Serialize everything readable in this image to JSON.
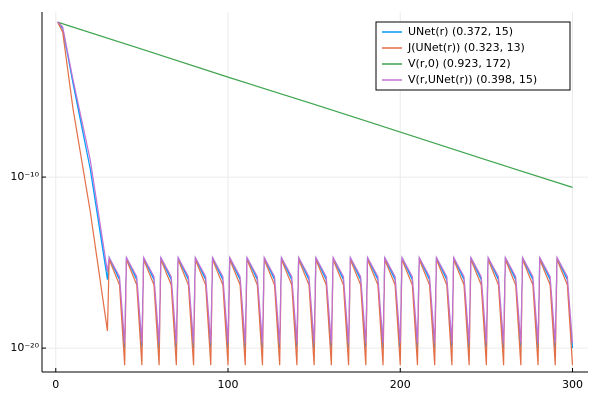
{
  "chart_data": {
    "type": "line",
    "yscale": "log",
    "grid": true,
    "legend": "topright",
    "xlim": [
      -8,
      309
    ],
    "xticks": [
      0,
      100,
      200,
      300
    ],
    "ylim": [
      4e-22,
      0.45
    ],
    "yticks": [
      {
        "value": 1e-10,
        "label": "10⁻¹⁰"
      },
      {
        "value": 1e-20,
        "label": "10⁻²⁰"
      }
    ],
    "x": [
      1,
      4,
      10,
      20,
      30,
      31,
      37,
      40,
      41,
      47,
      50,
      51,
      57,
      60,
      61,
      67,
      70,
      71,
      77,
      80,
      81,
      87,
      90,
      91,
      97,
      100,
      101,
      107,
      110,
      111,
      117,
      120,
      121,
      127,
      130,
      131,
      137,
      140,
      141,
      147,
      150,
      151,
      157,
      160,
      161,
      167,
      170,
      171,
      177,
      180,
      181,
      187,
      190,
      191,
      197,
      200,
      201,
      207,
      210,
      211,
      217,
      220,
      221,
      227,
      230,
      231,
      237,
      240,
      241,
      247,
      250,
      251,
      257,
      260,
      261,
      267,
      270,
      271,
      277,
      280,
      281,
      287,
      290,
      291,
      297,
      300
    ],
    "series": [
      {
        "name": "UNet(r) (0.372, 15)",
        "color": "#009afa",
        "values": [
          0.12,
          0.05,
          3e-05,
          3e-10,
          1e-16,
          2e-15,
          1e-16,
          1e-20,
          2e-15,
          1e-16,
          1e-20,
          2e-15,
          1e-16,
          1e-20,
          2e-15,
          1e-16,
          1e-20,
          2e-15,
          1e-16,
          1e-20,
          2e-15,
          1e-16,
          1e-20,
          2e-15,
          1e-16,
          1e-20,
          2e-15,
          1e-16,
          1e-20,
          2e-15,
          1e-16,
          1e-20,
          2e-15,
          1e-16,
          1e-20,
          2e-15,
          1e-16,
          1e-20,
          2e-15,
          1e-16,
          1e-20,
          2e-15,
          1e-16,
          1e-20,
          2e-15,
          1e-16,
          1e-20,
          2e-15,
          1e-16,
          1e-20,
          2e-15,
          1e-16,
          1e-20,
          2e-15,
          1e-16,
          1e-20,
          2e-15,
          1e-16,
          1e-20,
          2e-15,
          1e-16,
          1e-20,
          2e-15,
          1e-16,
          1e-20,
          2e-15,
          1e-16,
          1e-20,
          2e-15,
          1e-16,
          1e-20,
          2e-15,
          1e-16,
          1e-20,
          2e-15,
          1e-16,
          1e-20,
          2e-15,
          1e-16,
          1e-20,
          2e-15,
          1e-16,
          1e-20,
          2e-15,
          1e-16,
          1e-20
        ]
      },
      {
        "name": "J(UNet(r)) (0.323, 13)",
        "color": "#e36f47",
        "values": [
          0.12,
          0.03,
          1e-06,
          1e-12,
          1e-19,
          1.5e-15,
          5e-17,
          1e-21,
          1.5e-15,
          5e-17,
          1e-21,
          1.5e-15,
          5e-17,
          1e-21,
          1.5e-15,
          5e-17,
          1e-21,
          1.5e-15,
          5e-17,
          1e-21,
          1.5e-15,
          5e-17,
          1e-21,
          1.5e-15,
          5e-17,
          1e-21,
          1.5e-15,
          5e-17,
          1e-21,
          1.5e-15,
          5e-17,
          1e-21,
          1.5e-15,
          5e-17,
          1e-21,
          1.5e-15,
          5e-17,
          1e-21,
          1.5e-15,
          5e-17,
          1e-21,
          1.5e-15,
          5e-17,
          1e-21,
          1.5e-15,
          5e-17,
          1e-21,
          1.5e-15,
          5e-17,
          1e-21,
          1.5e-15,
          5e-17,
          1e-21,
          1.5e-15,
          5e-17,
          1e-21,
          1.5e-15,
          5e-17,
          1e-21,
          1.5e-15,
          5e-17,
          1e-21,
          1.5e-15,
          5e-17,
          1e-21,
          1.5e-15,
          5e-17,
          1e-21,
          1.5e-15,
          5e-17,
          1e-21,
          1.5e-15,
          5e-17,
          1e-21,
          1.5e-15,
          5e-17,
          1e-21,
          1.5e-15,
          5e-17,
          1e-21,
          1.5e-15,
          5e-17,
          1e-21,
          1.5e-15,
          5e-17,
          1e-21
        ]
      },
      {
        "name": "V(r,0) (0.923, 172)",
        "color": "#3ea44e",
        "x": [
          1,
          50,
          100,
          150,
          200,
          250,
          300
        ],
        "values": [
          0.115,
          0.003,
          7e-05,
          1.8e-06,
          4.3e-08,
          1e-09,
          2.5e-11
        ]
      },
      {
        "name": "V(r,UNet(r)) (0.398, 15)",
        "color": "#c371d2",
        "values": [
          0.12,
          0.06,
          5e-05,
          1e-09,
          3e-16,
          2e-15,
          1.5e-16,
          2e-20,
          2e-15,
          1.5e-16,
          2e-20,
          2e-15,
          1.5e-16,
          2e-20,
          2e-15,
          1.5e-16,
          2e-20,
          2e-15,
          1.5e-16,
          2e-20,
          2e-15,
          1.5e-16,
          2e-20,
          2e-15,
          1.5e-16,
          2e-20,
          2e-15,
          1.5e-16,
          2e-20,
          2e-15,
          1.5e-16,
          2e-20,
          2e-15,
          1.5e-16,
          2e-20,
          2e-15,
          1.5e-16,
          2e-20,
          2e-15,
          1.5e-16,
          2e-20,
          2e-15,
          1.5e-16,
          2e-20,
          2e-15,
          1.5e-16,
          2e-20,
          2e-15,
          1.5e-16,
          2e-20,
          2e-15,
          1.5e-16,
          2e-20,
          2e-15,
          1.5e-16,
          2e-20,
          2e-15,
          1.5e-16,
          2e-20,
          2e-15,
          1.5e-16,
          2e-20,
          2e-15,
          1.5e-16,
          2e-20,
          2e-15,
          1.5e-16,
          2e-20,
          2e-15,
          1.5e-16,
          2e-20,
          2e-15,
          1.5e-16,
          2e-20,
          2e-15,
          1.5e-16,
          2e-20,
          2e-15,
          1.5e-16,
          2e-20,
          2e-15,
          1.5e-16,
          2e-20,
          2e-15,
          1.5e-16,
          2e-20
        ]
      }
    ]
  }
}
